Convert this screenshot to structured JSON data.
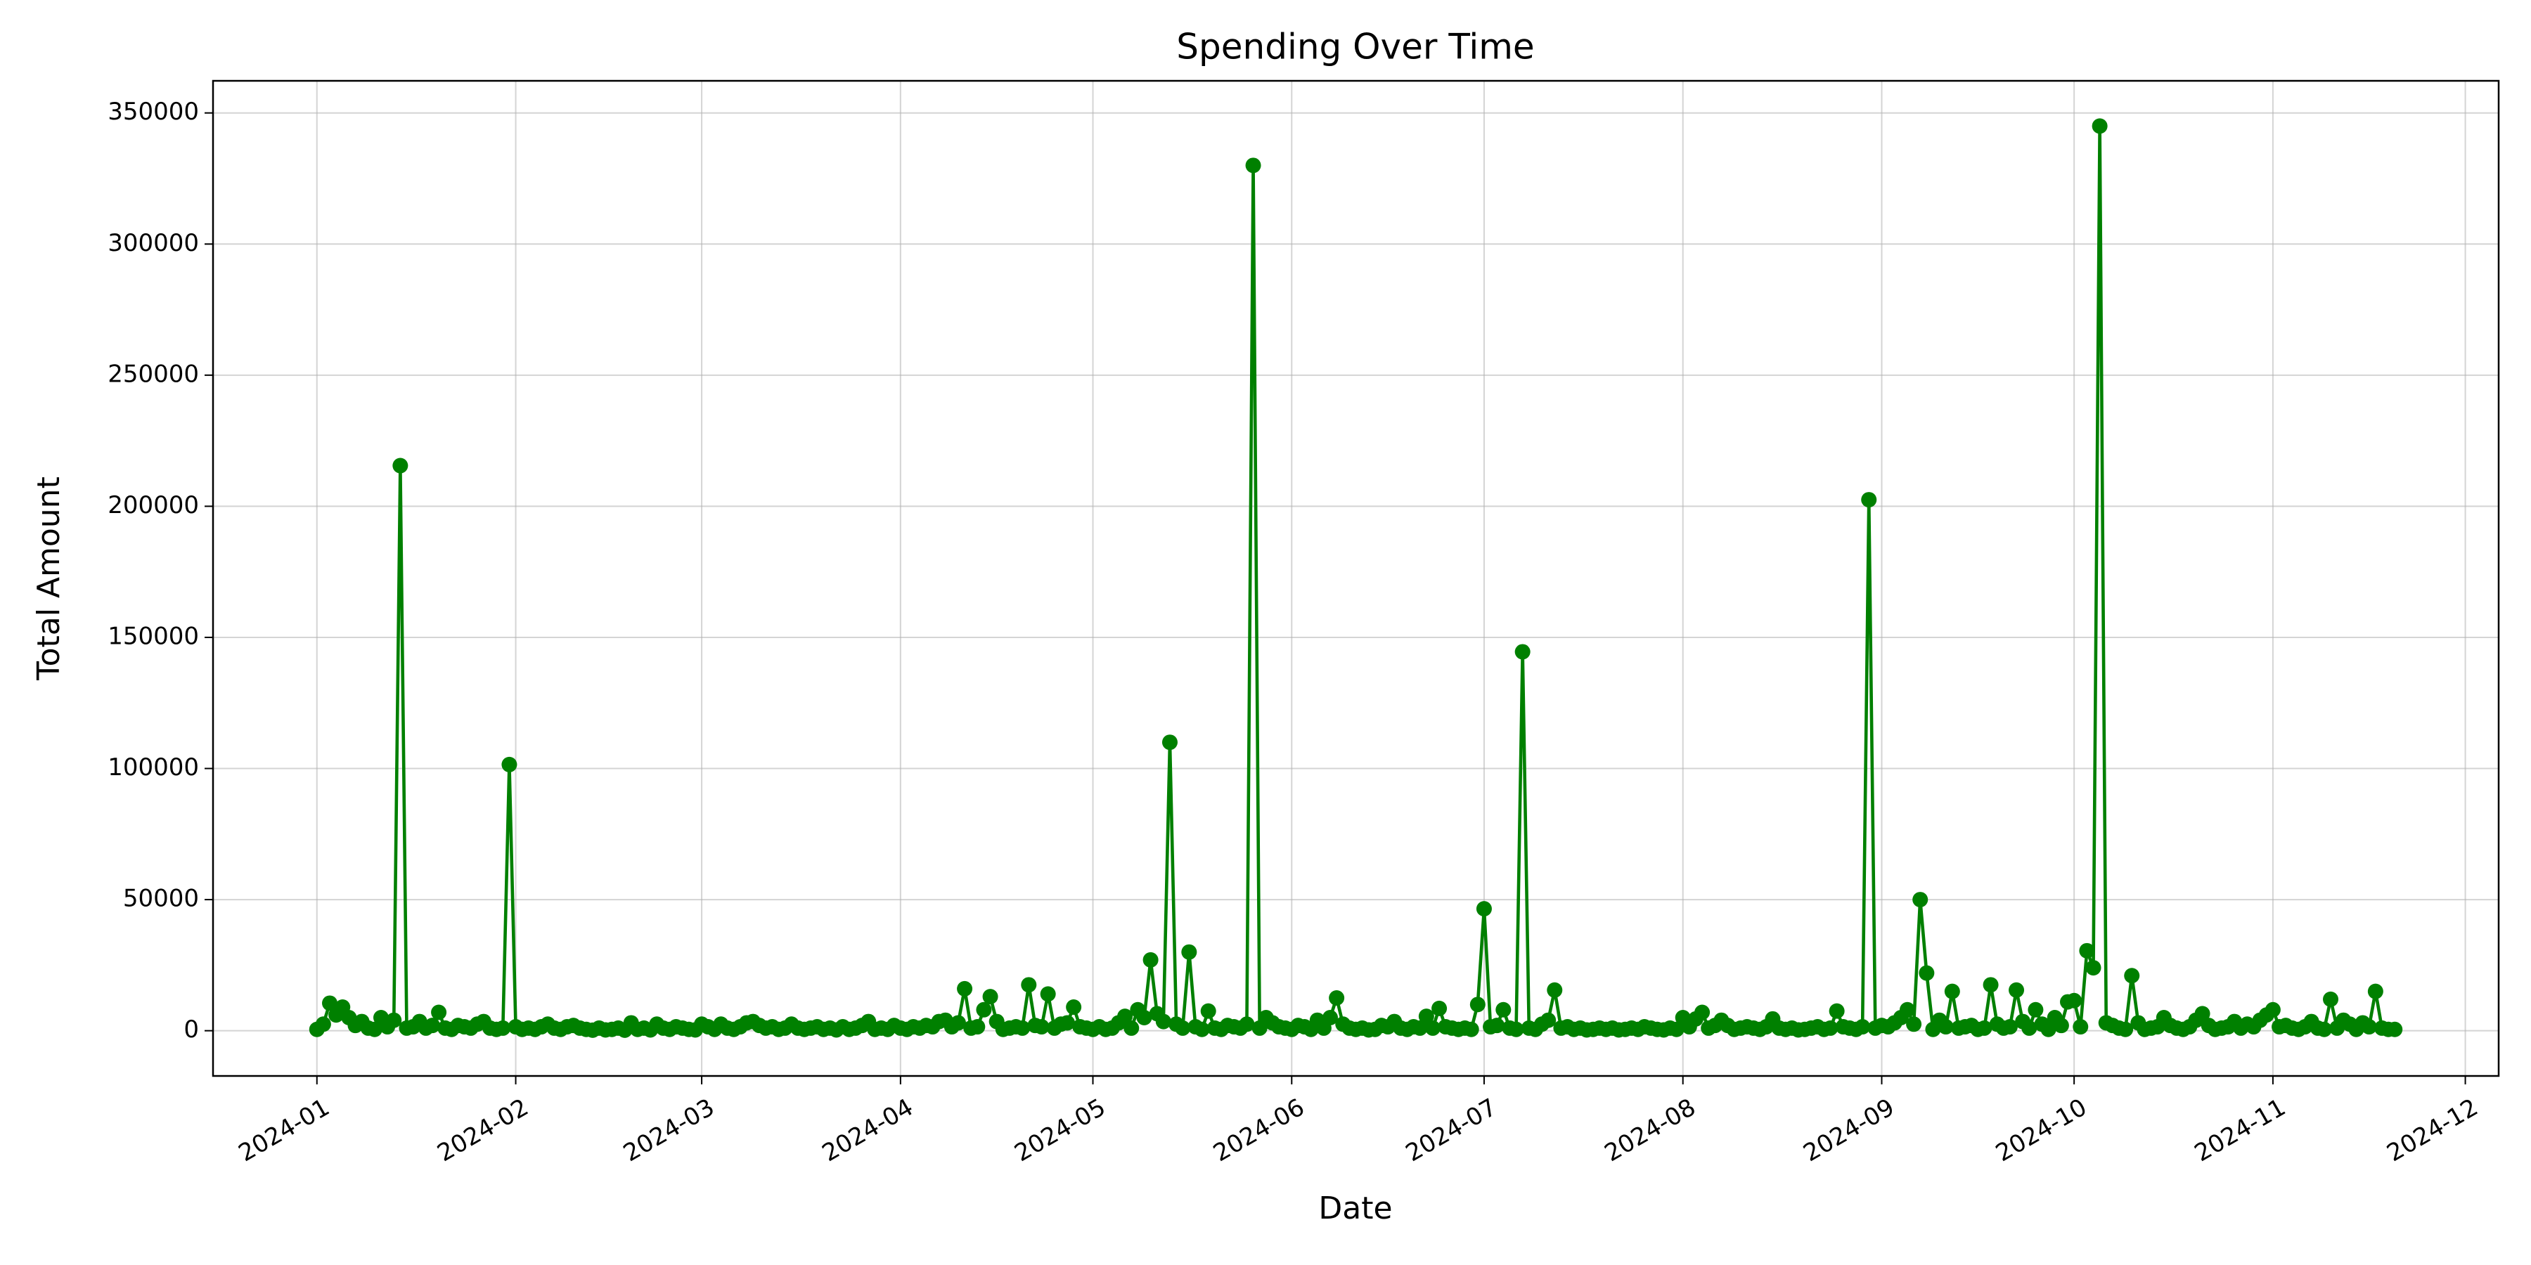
{
  "chart_data": {
    "type": "line",
    "title": "Spending Over Time",
    "x_label": "Date",
    "y_label": "Total Amount",
    "x": [
      0,
      1,
      2,
      3,
      4,
      5,
      6,
      7,
      8,
      9,
      10,
      11,
      12,
      13,
      14,
      15,
      16,
      17,
      18,
      19,
      20,
      21,
      22,
      23,
      24,
      25,
      26,
      27,
      28,
      29,
      30,
      31,
      32,
      33,
      34,
      35,
      36,
      37,
      38,
      39,
      40,
      41,
      42,
      43,
      44,
      45,
      46,
      47,
      48,
      49,
      50,
      51,
      52,
      53,
      54,
      55,
      56,
      57,
      58,
      59,
      60,
      61,
      62,
      63,
      64,
      65,
      66,
      67,
      68,
      69,
      70,
      71,
      72,
      73,
      74,
      75,
      76,
      77,
      78,
      79,
      80,
      81,
      82,
      83,
      84,
      85,
      86,
      87,
      88,
      89,
      90,
      91,
      92,
      93,
      94,
      95,
      96,
      97,
      98,
      99,
      100,
      101,
      102,
      103,
      104,
      105,
      106,
      107,
      108,
      109,
      110,
      111,
      112,
      113,
      114,
      115,
      116,
      117,
      118,
      119,
      120,
      121,
      122,
      123,
      124,
      125,
      126,
      127,
      128,
      129,
      130,
      131,
      132,
      133,
      134,
      135,
      136,
      137,
      138,
      139,
      140,
      141,
      142,
      143,
      144,
      145,
      146,
      147,
      148,
      149,
      150,
      151,
      152,
      153,
      154,
      155,
      156,
      157,
      158,
      159,
      160,
      161,
      162,
      163,
      164,
      165,
      166,
      167,
      168,
      169,
      170,
      171,
      172,
      173,
      174,
      175,
      176,
      177,
      178,
      179,
      180,
      181,
      182,
      183,
      184,
      185,
      186,
      187,
      188,
      189,
      190,
      191,
      192,
      193,
      194,
      195,
      196,
      197,
      198,
      199,
      200,
      201,
      202,
      203,
      204,
      205,
      206,
      207,
      208,
      209,
      210,
      211,
      212,
      213,
      214,
      215,
      216,
      217,
      218,
      219,
      220,
      221,
      222,
      223,
      224,
      225,
      226,
      227,
      228,
      229,
      230,
      231,
      232,
      233,
      234,
      235,
      236,
      237,
      238,
      239,
      240,
      241,
      242,
      243,
      244,
      245,
      246,
      247,
      248,
      249,
      250,
      251,
      252,
      253,
      254,
      255,
      256,
      257,
      258,
      259,
      260,
      261,
      262,
      263,
      264,
      265,
      266,
      267,
      268,
      269,
      270,
      271,
      272,
      273,
      274,
      275,
      276,
      277,
      278,
      279,
      280,
      281,
      282,
      283,
      284,
      285,
      286,
      287,
      288,
      289,
      290,
      291,
      292,
      293,
      294,
      295,
      296,
      297,
      298,
      299,
      300,
      301,
      302,
      303,
      304,
      305,
      306,
      307,
      308,
      309,
      310,
      311,
      312,
      313,
      314,
      315,
      316,
      317,
      318,
      319,
      320,
      321,
      322,
      323,
      324
    ],
    "series": [
      {
        "name": "Total Amount",
        "color": "#008000",
        "values": [
          500,
          2500,
          10500,
          6000,
          9000,
          5000,
          2000,
          3500,
          1000,
          500,
          5000,
          1500,
          4000,
          215500,
          1000,
          1500,
          3500,
          1000,
          2000,
          7000,
          1000,
          500,
          2000,
          1500,
          1000,
          2500,
          3500,
          1000,
          500,
          1000,
          101500,
          1500,
          500,
          1000,
          500,
          1500,
          2500,
          1000,
          500,
          1500,
          2000,
          1000,
          500,
          200,
          1000,
          300,
          500,
          1000,
          200,
          3000,
          500,
          1000,
          300,
          2500,
          1000,
          500,
          1500,
          1000,
          500,
          300,
          2500,
          1500,
          500,
          2500,
          1000,
          500,
          1500,
          3000,
          3500,
          2000,
          1000,
          1500,
          500,
          1000,
          2500,
          1000,
          500,
          1000,
          1500,
          500,
          1000,
          300,
          1500,
          500,
          1000,
          2000,
          3500,
          500,
          1000,
          500,
          2000,
          1000,
          500,
          1500,
          1000,
          2000,
          1500,
          3500,
          4000,
          1500,
          3000,
          16000,
          1000,
          1500,
          8000,
          13000,
          3500,
          500,
          1000,
          1500,
          1000,
          17500,
          2000,
          1500,
          14000,
          1000,
          2500,
          3000,
          9000,
          1500,
          1000,
          500,
          1500,
          500,
          1000,
          3000,
          5500,
          1000,
          8000,
          5000,
          27000,
          6500,
          3500,
          110000,
          2500,
          1000,
          30000,
          1500,
          500,
          7500,
          1000,
          500,
          2000,
          1500,
          1000,
          2500,
          330000,
          1000,
          5000,
          3000,
          1500,
          1000,
          500,
          2000,
          1500,
          500,
          4000,
          1000,
          5000,
          12500,
          2500,
          1000,
          500,
          1000,
          300,
          500,
          2000,
          1500,
          3500,
          1000,
          500,
          1500,
          1000,
          5500,
          1000,
          8500,
          1500,
          1000,
          500,
          1000,
          500,
          10000,
          46500,
          1500,
          2000,
          8000,
          1000,
          500,
          144500,
          1000,
          500,
          2500,
          4000,
          15500,
          1000,
          1500,
          500,
          1000,
          300,
          500,
          1000,
          500,
          1000,
          300,
          500,
          1000,
          500,
          1500,
          1000,
          500,
          300,
          1000,
          500,
          5000,
          1500,
          4500,
          7000,
          1000,
          2000,
          4000,
          2000,
          500,
          1000,
          1500,
          1000,
          500,
          1500,
          4500,
          1000,
          500,
          1000,
          300,
          500,
          1000,
          1500,
          500,
          1000,
          7500,
          1500,
          1000,
          500,
          1500,
          202500,
          1000,
          2000,
          1500,
          3000,
          5000,
          8000,
          2500,
          50000,
          22000,
          500,
          4000,
          1500,
          15000,
          1000,
          1500,
          2000,
          500,
          1000,
          17500,
          2500,
          1000,
          1500,
          15500,
          3500,
          1000,
          8000,
          2500,
          500,
          5000,
          2000,
          11000,
          11500,
          1500,
          30500,
          24000,
          345000,
          3000,
          2000,
          1000,
          500,
          21000,
          3000,
          500,
          1000,
          1500,
          5000,
          2000,
          1000,
          500,
          1500,
          4000,
          6500,
          2000,
          500,
          1000,
          1500,
          3500,
          1000,
          2500,
          1500,
          4000,
          6000,
          8000,
          1500,
          2000,
          1000,
          500,
          1500,
          3500,
          1000,
          500,
          12000,
          1000,
          4000,
          2500,
          500,
          3000,
          1500,
          15000,
          1000,
          500,
          500
        ]
      }
    ],
    "xlim": [
      -16.2,
      340.2
    ],
    "xticks": [
      {
        "value": 0,
        "label": "2024-01"
      },
      {
        "value": 31,
        "label": "2024-02"
      },
      {
        "value": 60,
        "label": "2024-03"
      },
      {
        "value": 91,
        "label": "2024-04"
      },
      {
        "value": 121,
        "label": "2024-05"
      },
      {
        "value": 152,
        "label": "2024-06"
      },
      {
        "value": 182,
        "label": "2024-07"
      },
      {
        "value": 213,
        "label": "2024-08"
      },
      {
        "value": 244,
        "label": "2024-09"
      },
      {
        "value": 274,
        "label": "2024-10"
      },
      {
        "value": 305,
        "label": "2024-11"
      },
      {
        "value": 335,
        "label": "2024-12"
      }
    ],
    "ylim": [
      -17250,
      362250
    ],
    "yticks": [
      0,
      50000,
      100000,
      150000,
      200000,
      250000,
      300000,
      350000
    ],
    "grid": true,
    "marker": "o"
  }
}
